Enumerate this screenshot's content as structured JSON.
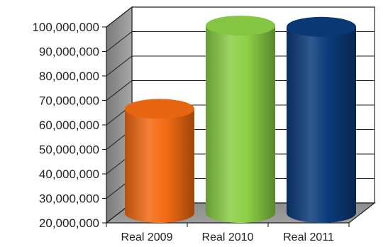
{
  "chart_data": {
    "type": "bar",
    "style": "3d-cylinder",
    "categories": [
      "Real 2009",
      "Real 2010",
      "Real 2011"
    ],
    "values": [
      62500000,
      96500000,
      96000000
    ],
    "colors": [
      "#f36a12",
      "#8bcf45",
      "#0a3b7a"
    ],
    "ylim": [
      20000000,
      100000000
    ],
    "yticks": [
      "100,000,000",
      "90,000,000",
      "80,000,000",
      "70,000,000",
      "60,000,000",
      "50,000,000",
      "40,000,000",
      "30,000,000",
      "20,000,000"
    ],
    "grid": true,
    "title": "",
    "xlabel": "",
    "ylabel": ""
  }
}
